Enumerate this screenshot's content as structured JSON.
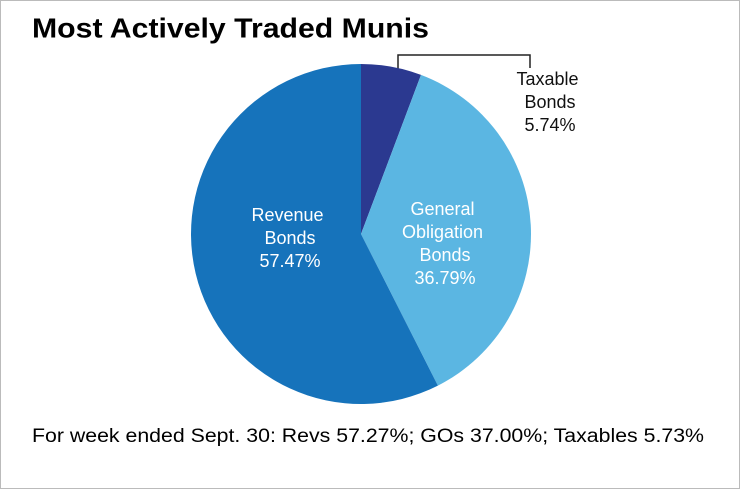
{
  "chart_data": {
    "type": "pie",
    "title": "Most Actively Traded Munis",
    "categories": [
      "Taxable Bonds",
      "General Obligation Bonds",
      "Revenue Bonds"
    ],
    "values": [
      5.74,
      36.79,
      57.47
    ],
    "value_labels": [
      "5.74%",
      "36.79%",
      "57.47%"
    ],
    "colors": [
      "#2b3990",
      "#5bb6e2",
      "#1673bb"
    ],
    "note": "For week ended Sept. 30: Revs 57.27%; GOs 37.00%; Taxables 5.73%"
  }
}
